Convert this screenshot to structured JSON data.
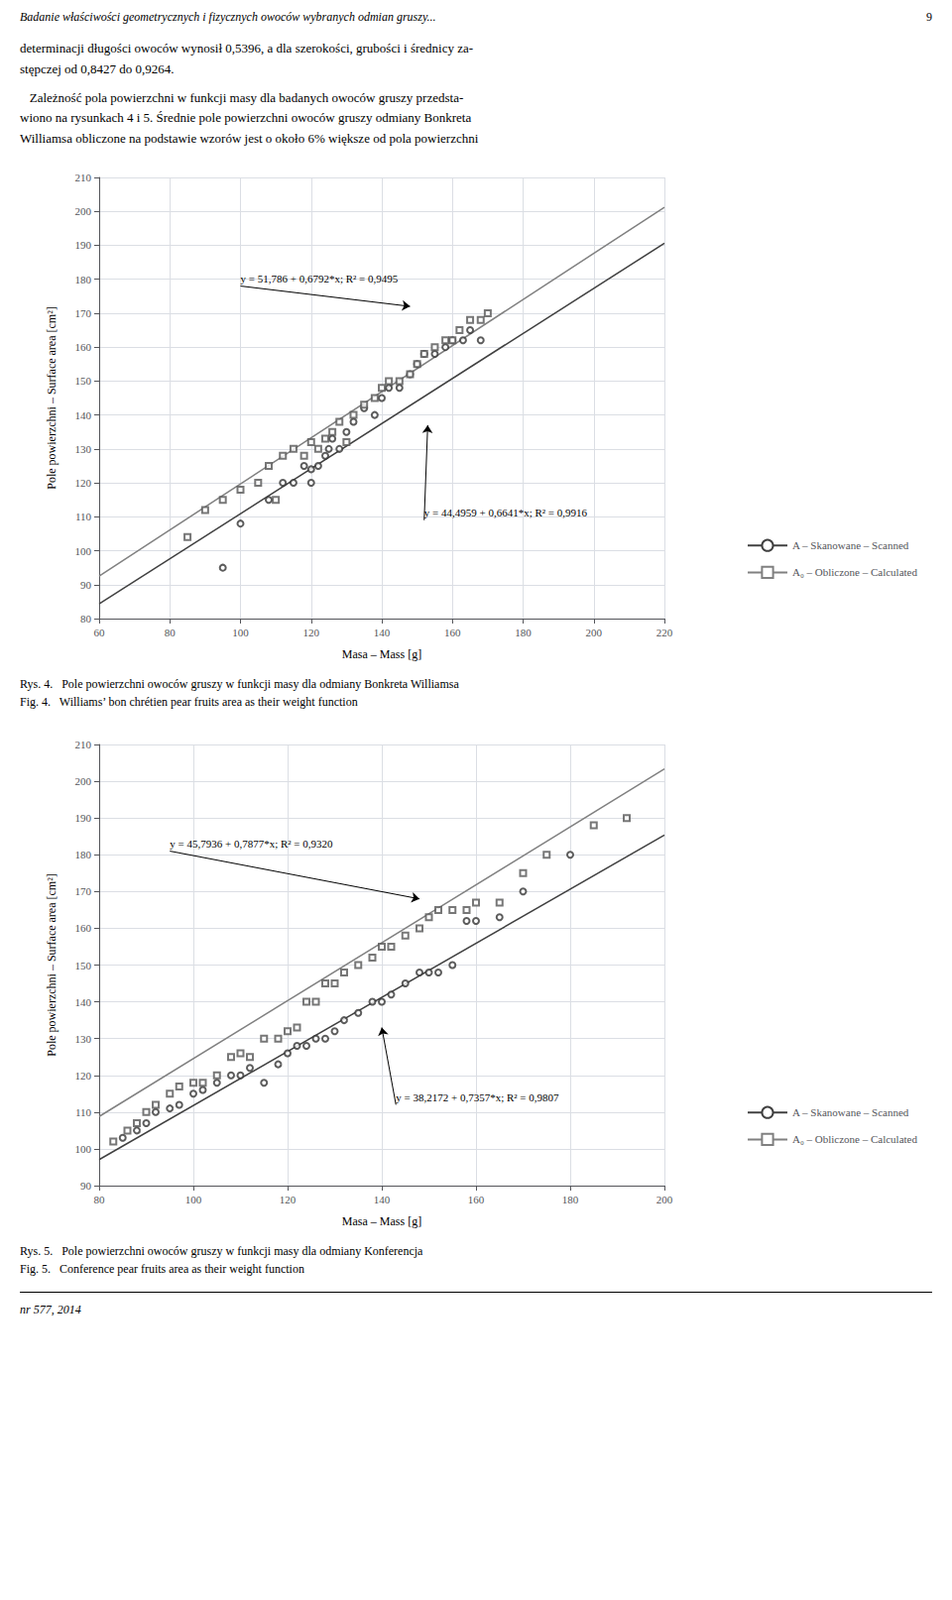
{
  "page_title": "Badanie właściwości geometrycznych i fizycznych owoców wybranych odmian gruszy...",
  "page_number": "9",
  "paragraphs": [
    "determinacji długości owoców wynosił 0,5396, a dla szerokości, grubości i średnicy za-\nstępczej od 0,8427 do 0,9264.",
    "   Zależność pola powierzchni w funkcji masy dla badanych owoców gruszy przedsta-\nwiono na rysunkach 4 i 5. Średnie pole powierzchni owoców gruszy odmiany Bonkreta\nWilliamsa obliczone na podstawie wzorów jest o około 6% większe od pola powierzchni"
  ],
  "footer": "nr 577, 2014",
  "chart_data": [
    {
      "type": "scatter",
      "title": "Rys. 4.   Pole powierzchni owoców gruszy w funkcji masy dla odmiany Bonkreta Williamsa",
      "subtitle": "Fig. 4.   Williams’ bon chrétien pear fruits area as their weight function",
      "xlabel": "Masa – Mass [g]",
      "ylabel": "Pole powierzchni – Surface area [cm²]",
      "xlim": [
        60,
        220
      ],
      "ylim": [
        80,
        210
      ],
      "xticks": [
        60,
        80,
        100,
        120,
        140,
        160,
        180,
        200,
        220
      ],
      "yticks": [
        80,
        90,
        100,
        110,
        120,
        130,
        140,
        150,
        160,
        170,
        180,
        190,
        200,
        210
      ],
      "grid": true,
      "legend": "right",
      "series": [
        {
          "name": "A – Skanowane – Scanned",
          "type": "line",
          "color": "#404040",
          "marker": "circle",
          "x": [
            60,
            220
          ],
          "values": [
            84.3419,
            190.5979
          ]
        },
        {
          "name": "A₀ – Obliczone – Calculated",
          "type": "line",
          "color": "#808080",
          "marker": "square",
          "x": [
            60,
            220
          ],
          "values": [
            92.538,
            201.21
          ]
        },
        {
          "name": "A – Skanowane – Scanned",
          "type": "scatter",
          "color": "#333333",
          "marker": "circle",
          "x": [
            95,
            100,
            108,
            112,
            115,
            118,
            120,
            120,
            122,
            124,
            125,
            126,
            128,
            130,
            132,
            135,
            138,
            140,
            142,
            145,
            148,
            150,
            152,
            155,
            158,
            160,
            163,
            165,
            168
          ],
          "values": [
            95,
            108,
            115,
            120,
            120,
            125,
            120,
            124,
            125,
            128,
            130,
            133,
            130,
            135,
            138,
            142,
            140,
            145,
            148,
            148,
            152,
            155,
            158,
            158,
            160,
            162,
            162,
            165,
            162
          ]
        },
        {
          "name": "A₀ – Obliczone – Calculated",
          "type": "scatter",
          "color": "#555555",
          "marker": "square",
          "x": [
            85,
            90,
            95,
            100,
            105,
            108,
            110,
            112,
            115,
            118,
            120,
            122,
            124,
            126,
            128,
            130,
            132,
            135,
            138,
            140,
            142,
            145,
            148,
            150,
            152,
            155,
            158,
            160,
            162,
            165,
            168,
            170
          ],
          "values": [
            104,
            112,
            115,
            118,
            120,
            125,
            115,
            128,
            130,
            128,
            132,
            130,
            133,
            135,
            138,
            132,
            140,
            143,
            145,
            148,
            150,
            150,
            152,
            155,
            158,
            160,
            162,
            162,
            165,
            168,
            168,
            170
          ]
        }
      ],
      "annotations": [
        {
          "text": "y = 51,786 + 0,6792*x; R² = 0,9495",
          "xytext": [
            100,
            178
          ],
          "xy": [
            148,
            172
          ]
        },
        {
          "text": "y = 44,4959 + 0,6641*x; R² = 0,9916",
          "xytext": [
            152,
            109
          ],
          "xy": [
            153,
            137
          ]
        }
      ]
    },
    {
      "type": "scatter",
      "title": "Rys. 5.   Pole powierzchni owoców gruszy w funkcji masy dla odmiany Konferencja",
      "subtitle": "Fig. 5.   Conference pear fruits area as their weight function",
      "xlabel": "Masa – Mass [g]",
      "ylabel": "Pole powierzchni – Surface area [cm²]",
      "xlim": [
        80,
        200
      ],
      "ylim": [
        90,
        210
      ],
      "xticks": [
        80,
        100,
        120,
        140,
        160,
        180,
        200
      ],
      "yticks": [
        90,
        100,
        110,
        120,
        130,
        140,
        150,
        160,
        170,
        180,
        190,
        200,
        210
      ],
      "grid": true,
      "legend": "right",
      "series": [
        {
          "name": "A – Skanowane – Scanned",
          "type": "line",
          "color": "#404040",
          "marker": "circle",
          "x": [
            80,
            200
          ],
          "values": [
            97.0732,
            185.3572
          ]
        },
        {
          "name": "A₀ – Obliczone – Calculated",
          "type": "line",
          "color": "#808080",
          "marker": "square",
          "x": [
            80,
            200
          ],
          "values": [
            108.8096,
            203.3336
          ]
        },
        {
          "name": "A – Skanowane – Scanned",
          "type": "scatter",
          "color": "#333333",
          "marker": "circle",
          "x": [
            85,
            88,
            90,
            92,
            95,
            97,
            100,
            102,
            105,
            108,
            110,
            112,
            115,
            118,
            120,
            122,
            124,
            126,
            128,
            130,
            132,
            135,
            138,
            140,
            142,
            145,
            148,
            150,
            152,
            155,
            158,
            160,
            165,
            170,
            180
          ],
          "values": [
            103,
            105,
            107,
            110,
            111,
            112,
            115,
            116,
            118,
            120,
            120,
            122,
            118,
            123,
            126,
            128,
            128,
            130,
            130,
            132,
            135,
            137,
            140,
            140,
            142,
            145,
            148,
            148,
            148,
            150,
            162,
            162,
            163,
            170,
            180
          ]
        },
        {
          "name": "A₀ – Obliczone – Calculated",
          "type": "scatter",
          "color": "#555555",
          "marker": "square",
          "x": [
            83,
            86,
            88,
            90,
            92,
            95,
            97,
            100,
            102,
            105,
            108,
            110,
            112,
            115,
            118,
            120,
            122,
            124,
            126,
            128,
            130,
            132,
            135,
            138,
            140,
            142,
            145,
            148,
            150,
            152,
            155,
            158,
            160,
            165,
            170,
            175,
            185,
            192
          ],
          "values": [
            102,
            105,
            107,
            110,
            112,
            115,
            117,
            118,
            118,
            120,
            125,
            126,
            125,
            130,
            130,
            132,
            133,
            140,
            140,
            145,
            145,
            148,
            150,
            152,
            155,
            155,
            158,
            160,
            163,
            165,
            165,
            165,
            167,
            167,
            175,
            180,
            188,
            190
          ]
        }
      ],
      "annotations": [
        {
          "text": "y = 45,7936 + 0,7877*x; R² = 0,9320",
          "xytext": [
            95,
            181
          ],
          "xy": [
            148,
            168
          ]
        },
        {
          "text": "y = 38,2172 + 0,7357*x; R² = 0,9807",
          "xytext": [
            143,
            112
          ],
          "xy": [
            140,
            133
          ]
        }
      ]
    }
  ]
}
